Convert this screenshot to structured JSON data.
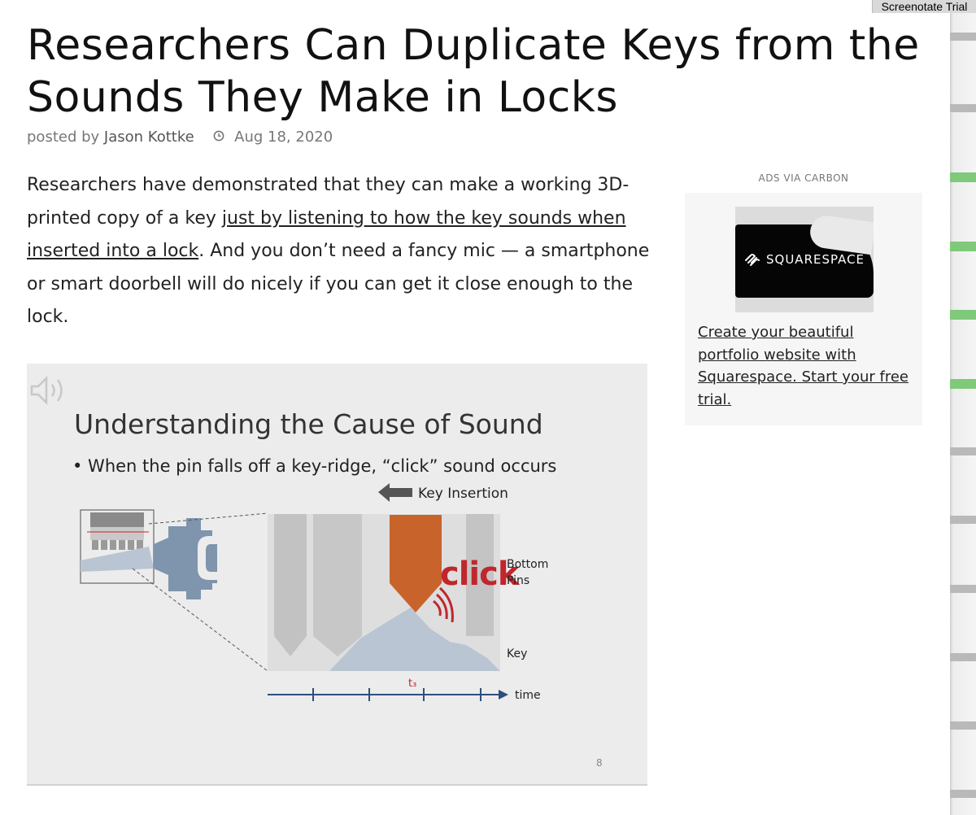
{
  "trial_badge": "Screenotate Trial",
  "article": {
    "title": "Researchers Can Duplicate Keys from the Sounds They Make in Locks",
    "byline": {
      "posted_by": "posted by",
      "author": "Jason Kottke",
      "clock_icon": "clock-icon",
      "date": "Aug 18, 2020"
    },
    "lede": {
      "before_link": "Researchers have demonstrated that they can make a working 3D-printed copy of a key ",
      "link_text": "just by listening to how the key sounds when inserted into a lock",
      "after_link": ". And you don’t need a fancy mic — a smartphone or smart doorbell will do nicely if you can get it close enough to the lock."
    }
  },
  "slide": {
    "speaker_icon": "speaker-icon",
    "title": "Understanding the Cause of Sound",
    "bullet": "• When the pin falls off a key-ridge, “click” sound occurs",
    "key_insertion": "Key Insertion",
    "click": "click",
    "bottom_pins_line1": "Bottom",
    "bottom_pins_line2": "Pins",
    "key": "Key",
    "t3": "t₃",
    "time": "time",
    "page_number": "8",
    "colors": {
      "pin_orange": "#c8632b",
      "key_blue": "#b9c5d2",
      "timeline": "#2d4f7c",
      "click_red": "#c0262d"
    }
  },
  "ad": {
    "label": "ADS VIA CARBON",
    "brand": "SQUARESPACE",
    "brand_icon": "squarespace-logo-icon",
    "text": "Create your beautiful portfolio website with Squarespace. Start your free trial."
  }
}
